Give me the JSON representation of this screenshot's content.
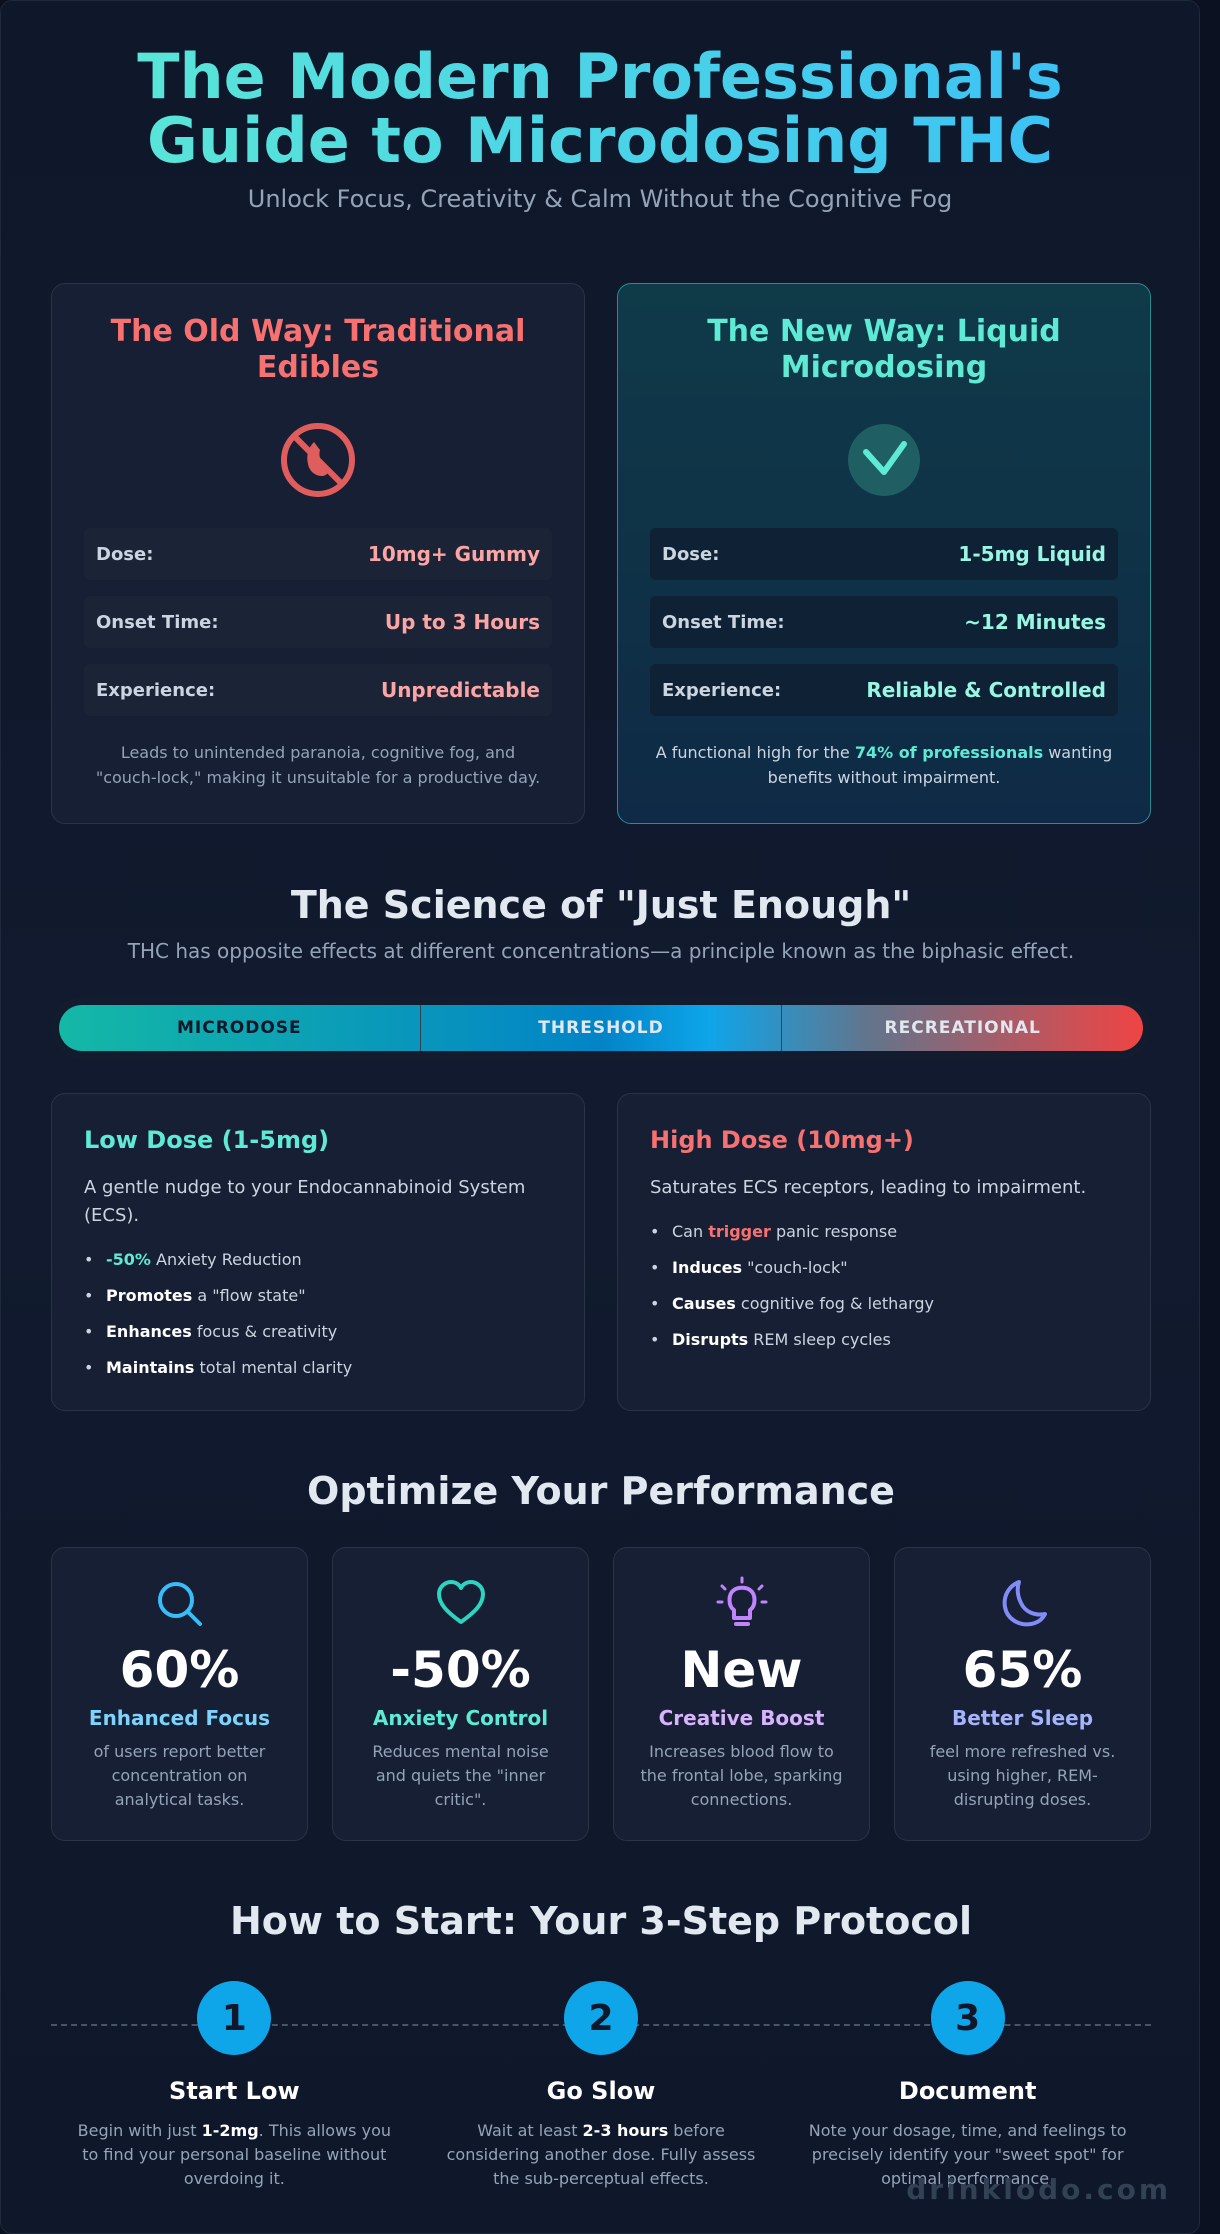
{
  "header": {
    "title_line1": "The Modern Professional's",
    "title_line2": "Guide to Microdosing THC",
    "subtitle": "Unlock Focus, Creativity & Calm Without the Cognitive Fog"
  },
  "old_way": {
    "title": "The Old Way: Traditional Edibles",
    "icon": "no-edible-icon",
    "rows": [
      {
        "label": "Dose:",
        "value": "10mg+ Gummy"
      },
      {
        "label": "Onset Time:",
        "value": "Up to 3 Hours"
      },
      {
        "label": "Experience:",
        "value": "Unpredictable"
      }
    ],
    "note": "Leads to unintended paranoia, cognitive fog, and \"couch-lock,\" making it unsuitable for a productive day."
  },
  "new_way": {
    "title": "The New Way: Liquid Microdosing",
    "icon": "checkmark-icon",
    "rows": [
      {
        "label": "Dose:",
        "value": "1-5mg Liquid"
      },
      {
        "label": "Onset Time:",
        "value": "~12 Minutes"
      },
      {
        "label": "Experience:",
        "value": "Reliable & Controlled"
      }
    ],
    "note_pre": "A functional high for the ",
    "note_highlight": "74% of professionals",
    "note_post": " wanting benefits without impairment."
  },
  "science": {
    "title": "The Science of \"Just Enough\"",
    "subtitle": "THC has opposite effects at different concentrations—a principle known as the biphasic effect.",
    "scale": [
      "MICRODOSE",
      "THRESHOLD",
      "RECREATIONAL"
    ]
  },
  "low_dose": {
    "title": "Low Dose (1-5mg)",
    "desc": "A gentle nudge to your Endocannabinoid System (ECS).",
    "items": [
      {
        "strong": "-50%",
        "rest": " Anxiety Reduction"
      },
      {
        "strong": "Promotes",
        "rest": " a \"flow state\""
      },
      {
        "strong": "Enhances",
        "rest": " focus & creativity"
      },
      {
        "strong": "Maintains",
        "rest": " total mental clarity"
      }
    ]
  },
  "high_dose": {
    "title": "High Dose (10mg+)",
    "desc": "Saturates ECS receptors, leading to impairment.",
    "items": [
      {
        "pre": "Can ",
        "strong": "trigger",
        "rest": " panic response"
      },
      {
        "pre": "",
        "strong": "Induces",
        "rest": " \"couch-lock\""
      },
      {
        "pre": "",
        "strong": "Causes",
        "rest": " cognitive fog & lethargy"
      },
      {
        "pre": "",
        "strong": "Disrupts",
        "rest": " REM sleep cycles"
      }
    ]
  },
  "performance": {
    "title": "Optimize Your Performance",
    "stats": [
      {
        "icon": "search-icon",
        "number": "60%",
        "label": "Enhanced Focus",
        "desc": "of users report better concentration on analytical tasks.",
        "color": "#7dd3fc"
      },
      {
        "icon": "heart-icon",
        "number": "-50%",
        "label": "Anxiety Control",
        "desc": "Reduces mental noise and quiets the \"inner critic\".",
        "color": "#5eead4"
      },
      {
        "icon": "lightbulb-icon",
        "number": "New",
        "label": "Creative Boost",
        "desc": "Increases blood flow to the frontal lobe, sparking connections.",
        "color": "#d8b4fe"
      },
      {
        "icon": "moon-icon",
        "number": "65%",
        "label": "Better Sleep",
        "desc": "feel more refreshed vs. using higher, REM-disrupting doses.",
        "color": "#a5b4fc"
      }
    ]
  },
  "protocol": {
    "title": "How to Start: Your 3-Step Protocol",
    "steps": [
      {
        "number": "1",
        "title": "Start Low",
        "pre": "Begin with just ",
        "strong": "1-2mg",
        "post": ". This allows you to find your personal baseline without overdoing it."
      },
      {
        "number": "2",
        "title": "Go Slow",
        "pre": "Wait at least ",
        "strong": "2-3 hours",
        "post": " before considering another dose. Fully assess the sub-perceptual effects."
      },
      {
        "number": "3",
        "title": "Document",
        "pre": "",
        "strong": "",
        "post": "Note your dosage, time, and feelings to precisely identify your \"sweet spot\" for optimal performance."
      }
    ]
  },
  "brand": "drinklodo.com"
}
